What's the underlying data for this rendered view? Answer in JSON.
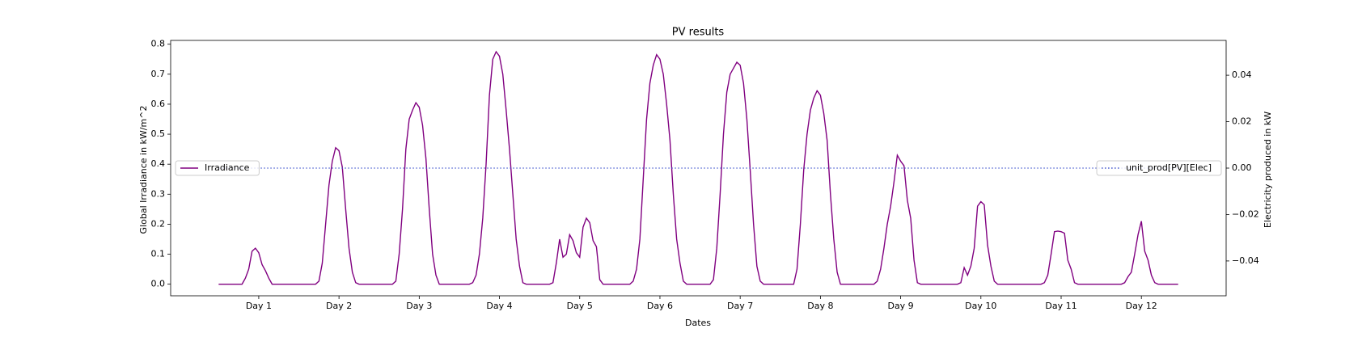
{
  "chart_data": {
    "type": "line",
    "title": "PV results",
    "xlabel": "Dates",
    "ylabel": "Global Irradiance in kW/m^2",
    "y2label": "Electricity produced in kW",
    "x": [
      0,
      1,
      2,
      3,
      4,
      5,
      6,
      7,
      8,
      9,
      10,
      11,
      12,
      13,
      14,
      15,
      16,
      17,
      18,
      19,
      20,
      21,
      22,
      23,
      24,
      25,
      26,
      27,
      28,
      29,
      30,
      31,
      32,
      33,
      34,
      35,
      36,
      37,
      38,
      39,
      40,
      41,
      42,
      43,
      44,
      45,
      46,
      47,
      48,
      49,
      50,
      51,
      52,
      53,
      54,
      55,
      56,
      57,
      58,
      59,
      60,
      61,
      62,
      63,
      64,
      65,
      66,
      67,
      68,
      69,
      70,
      71,
      72,
      73,
      74,
      75,
      76,
      77,
      78,
      79,
      80,
      81,
      82,
      83,
      84,
      85,
      86,
      87,
      88,
      89,
      90,
      91,
      92,
      93,
      94,
      95,
      96,
      97,
      98,
      99,
      100,
      101,
      102,
      103,
      104,
      105,
      106,
      107,
      108,
      109,
      110,
      111,
      112,
      113,
      114,
      115,
      116,
      117,
      118,
      119,
      120,
      121,
      122,
      123,
      124,
      125,
      126,
      127,
      128,
      129,
      130,
      131,
      132,
      133,
      134,
      135,
      136,
      137,
      138,
      139,
      140,
      141,
      142,
      143,
      144,
      145,
      146,
      147,
      148,
      149,
      150,
      151,
      152,
      153,
      154,
      155,
      156,
      157,
      158,
      159,
      160,
      161,
      162,
      163,
      164,
      165,
      166,
      167,
      168,
      169,
      170,
      171,
      172,
      173,
      174,
      175,
      176,
      177,
      178,
      179,
      180,
      181,
      182,
      183,
      184,
      185,
      186,
      187,
      188,
      189,
      190,
      191,
      192,
      193,
      194,
      195,
      196,
      197,
      198,
      199,
      200,
      201,
      202,
      203,
      204,
      205,
      206,
      207,
      208,
      209,
      210,
      211,
      212,
      213,
      214,
      215,
      216,
      217,
      218,
      219,
      220,
      221,
      222,
      223,
      224,
      225,
      226,
      227,
      228,
      229,
      230,
      231,
      232,
      233,
      234,
      235,
      236,
      237,
      238,
      239,
      240,
      241,
      242,
      243,
      244,
      245,
      246,
      247,
      248,
      249,
      250,
      251,
      252,
      253,
      254,
      255,
      256,
      257,
      258,
      259,
      260,
      261,
      262,
      263,
      264,
      265,
      266,
      267,
      268,
      269,
      270,
      271,
      272,
      273,
      274,
      275,
      276,
      277,
      278,
      279,
      280,
      281,
      282,
      283,
      284,
      285,
      286,
      287
    ],
    "xlim": [
      -14.35,
      301.35
    ],
    "xticks": [
      {
        "value": 12,
        "label": "Day 1"
      },
      {
        "value": 36,
        "label": "Day 2"
      },
      {
        "value": 60,
        "label": "Day 3"
      },
      {
        "value": 84,
        "label": "Day 4"
      },
      {
        "value": 108,
        "label": "Day 5"
      },
      {
        "value": 132,
        "label": "Day 6"
      },
      {
        "value": 156,
        "label": "Day 7"
      },
      {
        "value": 180,
        "label": "Day 8"
      },
      {
        "value": 204,
        "label": "Day 9"
      },
      {
        "value": 228,
        "label": "Day 10"
      },
      {
        "value": 252,
        "label": "Day 11"
      },
      {
        "value": 276,
        "label": "Day 12"
      }
    ],
    "ylim": [
      -0.0387,
      0.8127
    ],
    "yticks": [
      {
        "value": 0,
        "label": "0.0"
      },
      0.1,
      0.2,
      0.3,
      0.4,
      0.5,
      0.6,
      0.7,
      0.8
    ],
    "y2lim": [
      -0.055,
      0.055
    ],
    "y2ticks": [
      {
        "value": -0.04,
        "label": "−0.04"
      },
      {
        "value": -0.02,
        "label": "−0.02"
      },
      {
        "value": 0,
        "label": "0.00"
      },
      {
        "value": 0.02,
        "label": "0.02"
      },
      {
        "value": 0.04,
        "label": "0.04"
      }
    ],
    "series": [
      {
        "name": "Irradiance",
        "color": "#800080",
        "style": "solid",
        "legend": "center left",
        "values": [
          0,
          0,
          0,
          0,
          0,
          0,
          0,
          0,
          0.02,
          0.05,
          0.11,
          0.12,
          0.105,
          0.065,
          0.045,
          0.02,
          0,
          0,
          0,
          0,
          0,
          0,
          0,
          0,
          0,
          0,
          0,
          0,
          0,
          0,
          0.01,
          0.07,
          0.2,
          0.33,
          0.41,
          0.455,
          0.445,
          0.39,
          0.25,
          0.12,
          0.04,
          0.005,
          0,
          0,
          0,
          0,
          0,
          0,
          0,
          0,
          0,
          0,
          0,
          0.01,
          0.1,
          0.25,
          0.45,
          0.55,
          0.58,
          0.605,
          0.59,
          0.53,
          0.42,
          0.25,
          0.1,
          0.03,
          0,
          0,
          0,
          0,
          0,
          0,
          0,
          0,
          0,
          0,
          0.005,
          0.03,
          0.1,
          0.22,
          0.4,
          0.63,
          0.75,
          0.775,
          0.76,
          0.7,
          0.58,
          0.45,
          0.3,
          0.15,
          0.06,
          0.005,
          0,
          0,
          0,
          0,
          0,
          0,
          0,
          0,
          0.005,
          0.07,
          0.15,
          0.09,
          0.1,
          0.165,
          0.145,
          0.105,
          0.09,
          0.19,
          0.22,
          0.205,
          0.145,
          0.125,
          0.015,
          0,
          0,
          0,
          0,
          0,
          0,
          0,
          0,
          0,
          0.01,
          0.05,
          0.15,
          0.35,
          0.55,
          0.67,
          0.73,
          0.765,
          0.75,
          0.7,
          0.6,
          0.48,
          0.3,
          0.15,
          0.07,
          0.01,
          0,
          0,
          0,
          0,
          0,
          0,
          0,
          0,
          0.015,
          0.12,
          0.3,
          0.5,
          0.64,
          0.7,
          0.72,
          0.74,
          0.73,
          0.67,
          0.55,
          0.38,
          0.2,
          0.06,
          0.01,
          0,
          0,
          0,
          0,
          0,
          0,
          0,
          0,
          0,
          0,
          0.05,
          0.2,
          0.38,
          0.5,
          0.58,
          0.62,
          0.645,
          0.63,
          0.57,
          0.48,
          0.3,
          0.15,
          0.04,
          0,
          0,
          0,
          0,
          0,
          0,
          0,
          0,
          0,
          0,
          0,
          0.01,
          0.05,
          0.12,
          0.2,
          0.26,
          0.34,
          0.43,
          0.41,
          0.395,
          0.28,
          0.22,
          0.08,
          0.005,
          0,
          0,
          0,
          0,
          0,
          0,
          0,
          0,
          0,
          0,
          0,
          0,
          0.005,
          0.055,
          0.03,
          0.06,
          0.12,
          0.26,
          0.275,
          0.265,
          0.13,
          0.06,
          0.01,
          0,
          0,
          0,
          0,
          0,
          0,
          0,
          0,
          0,
          0,
          0,
          0,
          0,
          0,
          0.005,
          0.03,
          0.1,
          0.175,
          0.177,
          0.175,
          0.17,
          0.08,
          0.05,
          0.005,
          0,
          0,
          0,
          0,
          0,
          0,
          0,
          0,
          0,
          0,
          0,
          0,
          0,
          0,
          0.005,
          0.025,
          0.04,
          0.1,
          0.165,
          0.21,
          0.11,
          0.08,
          0.03,
          0.005,
          0,
          0,
          0,
          0,
          0,
          0,
          0
        ]
      },
      {
        "name": "unit_prod[PV][Elec]",
        "color": "#4a5fd0",
        "style": "dotted",
        "axis": "y2",
        "legend": "center right",
        "values": [
          0,
          0,
          0,
          0,
          0,
          0,
          0,
          0,
          0,
          0,
          0,
          0,
          0,
          0,
          0,
          0,
          0,
          0,
          0,
          0,
          0,
          0,
          0,
          0,
          0,
          0,
          0,
          0,
          0,
          0,
          0,
          0,
          0,
          0,
          0,
          0,
          0,
          0,
          0,
          0,
          0,
          0,
          0,
          0,
          0,
          0,
          0,
          0,
          0,
          0,
          0,
          0,
          0,
          0,
          0,
          0,
          0,
          0,
          0,
          0,
          0,
          0,
          0,
          0,
          0,
          0,
          0,
          0,
          0,
          0,
          0,
          0,
          0,
          0,
          0,
          0,
          0,
          0,
          0,
          0,
          0,
          0,
          0,
          0,
          0,
          0,
          0,
          0,
          0,
          0,
          0,
          0,
          0,
          0,
          0,
          0,
          0,
          0,
          0,
          0,
          0,
          0,
          0,
          0,
          0,
          0,
          0,
          0,
          0,
          0,
          0,
          0,
          0,
          0,
          0,
          0,
          0,
          0,
          0,
          0,
          0,
          0,
          0,
          0,
          0,
          0,
          0,
          0,
          0,
          0,
          0,
          0,
          0,
          0,
          0,
          0,
          0,
          0,
          0,
          0,
          0,
          0,
          0,
          0,
          0,
          0,
          0,
          0,
          0,
          0,
          0,
          0,
          0,
          0,
          0,
          0,
          0,
          0,
          0,
          0,
          0,
          0,
          0,
          0,
          0,
          0,
          0,
          0,
          0,
          0,
          0,
          0,
          0,
          0,
          0,
          0,
          0,
          0,
          0,
          0,
          0,
          0,
          0,
          0,
          0,
          0,
          0,
          0,
          0,
          0,
          0,
          0,
          0,
          0,
          0,
          0,
          0,
          0,
          0,
          0,
          0,
          0,
          0,
          0,
          0,
          0,
          0,
          0,
          0,
          0,
          0,
          0,
          0,
          0,
          0,
          0,
          0,
          0,
          0,
          0,
          0,
          0,
          0,
          0,
          0,
          0,
          0,
          0,
          0,
          0,
          0,
          0,
          0,
          0,
          0,
          0,
          0,
          0,
          0,
          0,
          0,
          0,
          0,
          0,
          0,
          0,
          0,
          0,
          0,
          0,
          0,
          0,
          0,
          0,
          0,
          0,
          0,
          0,
          0,
          0,
          0,
          0,
          0,
          0,
          0,
          0,
          0,
          0,
          0,
          0,
          0,
          0,
          0,
          0,
          0,
          0,
          0,
          0,
          0,
          0,
          0,
          0,
          0,
          0,
          0,
          0,
          0,
          0
        ]
      }
    ]
  }
}
